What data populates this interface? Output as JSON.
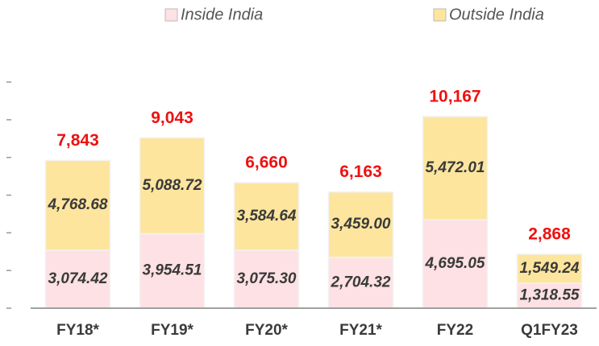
{
  "chart_data": {
    "type": "stacked_bar",
    "categories": [
      "FY18*",
      "FY19*",
      "FY20*",
      "FY21*",
      "FY22",
      "Q1FY23"
    ],
    "series": [
      {
        "name": "Inside India",
        "color": "#fde1e4",
        "values": [
          3074.42,
          3954.51,
          3075.3,
          2704.32,
          4695.05,
          1318.55
        ],
        "value_labels": [
          "3,074.42",
          "3,954.51",
          "3,075.30",
          "2,704.32",
          "4,695.05",
          "1,318.55"
        ]
      },
      {
        "name": "Outside India",
        "color": "#fde59e",
        "values": [
          4768.68,
          5088.72,
          3584.64,
          3459.0,
          5472.01,
          1549.24
        ],
        "value_labels": [
          "4,768.68",
          "5,088.72",
          "3,584.64",
          "3,459.00",
          "5,472.01",
          "1,549.24"
        ]
      }
    ],
    "totals": {
      "color": "#ee1111",
      "values": [
        7843,
        9043,
        6660,
        6163,
        10167,
        2868
      ],
      "value_labels": [
        "7,843",
        "9,043",
        "6,660",
        "6,163",
        "10,167",
        "2,868"
      ]
    },
    "ylim": [
      0,
      12000
    ],
    "yticks": [
      0,
      2000,
      4000,
      6000,
      8000,
      10000,
      12000
    ],
    "legend": "top"
  }
}
